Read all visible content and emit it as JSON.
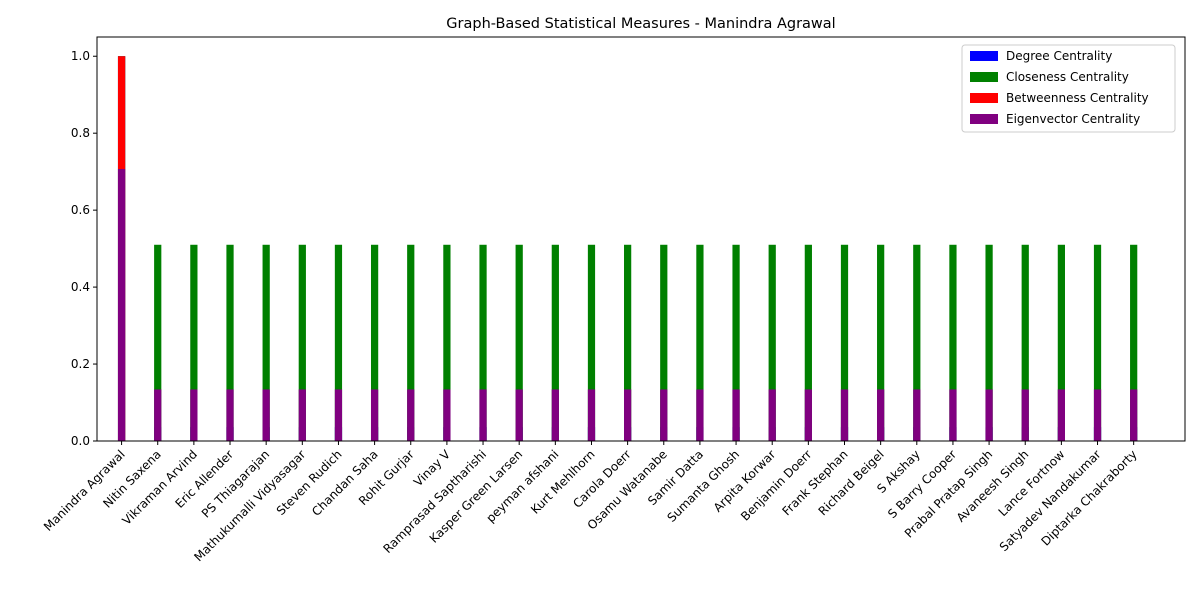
{
  "chart_data": {
    "type": "bar",
    "overlay": true,
    "title": "Graph-Based Statistical Measures - Manindra Agrawal",
    "categories": [
      "Manindra Agrawal",
      "Nitin Saxena",
      "Vikraman Arvind",
      "Eric Allender",
      "PS Thiagarajan",
      "Mathukumalli Vidyasagar",
      "Steven Rudich",
      "Chandan Saha",
      "Rohit Gurjar",
      "Vinay V",
      "Ramprasad Saptharishi",
      "Kasper Green Larsen",
      "peyman afshani",
      "Kurt Mehlhorn",
      "Carola Doerr",
      "Osamu Watanabe",
      "Samir Datta",
      "Sumanta Ghosh",
      "Arpita Korwar",
      "Benjamin Doerr",
      "Frank Stephan",
      "Richard Beigel",
      "S Akshay",
      "S Barry Cooper",
      "Prabal Pratap Singh",
      "Avaneesh Singh",
      "Lance Fortnow",
      "Satyadev Nandakumar",
      "Diptarka Chakraborty"
    ],
    "series": [
      {
        "name": "Degree Centrality",
        "color": "#0000ff",
        "values": [
          1.0,
          0.036,
          0.036,
          0.036,
          0.036,
          0.036,
          0.036,
          0.036,
          0.036,
          0.036,
          0.036,
          0.036,
          0.036,
          0.036,
          0.036,
          0.036,
          0.036,
          0.036,
          0.036,
          0.036,
          0.036,
          0.036,
          0.036,
          0.036,
          0.036,
          0.036,
          0.036,
          0.036,
          0.036
        ]
      },
      {
        "name": "Closeness Centrality",
        "color": "#008000",
        "values": [
          1.0,
          0.51,
          0.51,
          0.51,
          0.51,
          0.51,
          0.51,
          0.51,
          0.51,
          0.51,
          0.51,
          0.51,
          0.51,
          0.51,
          0.51,
          0.51,
          0.51,
          0.51,
          0.51,
          0.51,
          0.51,
          0.51,
          0.51,
          0.51,
          0.51,
          0.51,
          0.51,
          0.51,
          0.51
        ]
      },
      {
        "name": "Betweenness Centrality",
        "color": "#ff0000",
        "values": [
          1.0,
          0,
          0,
          0,
          0,
          0,
          0,
          0,
          0,
          0,
          0,
          0,
          0,
          0,
          0,
          0,
          0,
          0,
          0,
          0,
          0,
          0,
          0,
          0,
          0,
          0,
          0,
          0,
          0
        ]
      },
      {
        "name": "Eigenvector Centrality",
        "color": "#800080",
        "values": [
          0.707,
          0.134,
          0.134,
          0.134,
          0.134,
          0.134,
          0.134,
          0.134,
          0.134,
          0.134,
          0.134,
          0.134,
          0.134,
          0.134,
          0.134,
          0.134,
          0.134,
          0.134,
          0.134,
          0.134,
          0.134,
          0.134,
          0.134,
          0.134,
          0.134,
          0.134,
          0.134,
          0.134,
          0.134
        ]
      }
    ],
    "ylim": [
      0,
      1.05
    ],
    "yticks": [
      {
        "value": 0,
        "label": "0.0"
      },
      {
        "value": 0.2,
        "label": "0.2"
      },
      {
        "value": 0.4,
        "label": "0.4"
      },
      {
        "value": 0.6,
        "label": "0.6"
      },
      {
        "value": 0.8,
        "label": "0.8"
      },
      {
        "value": 1,
        "label": "1.0"
      }
    ],
    "legend": "upper right"
  }
}
